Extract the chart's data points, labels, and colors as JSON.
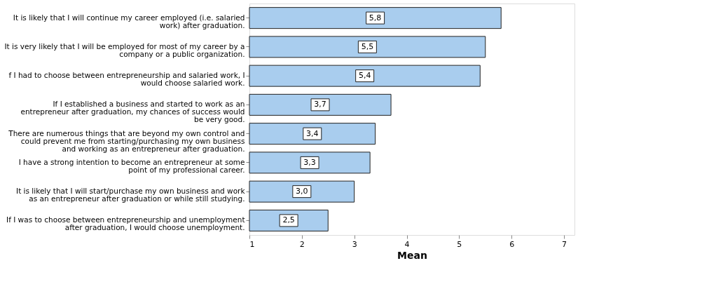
{
  "chart_data": {
    "type": "bar",
    "orientation": "horizontal",
    "xlabel": "Mean",
    "categories": [
      "It is likely that I will continue my career employed (i.e. salaried\nwork) after graduation.",
      "It is very likely that I will be employed for most of my career by a\ncompany or a public organization.",
      "f I had to choose between entrepreneurship and salaried work, I\nwould choose salaried work.",
      "If I established a business and started to work as an\nentrepreneur after graduation, my chances of success would\nbe very good.",
      "There are numerous things that are beyond my own control and\ncould prevent me from starting/purchasing my own business\nand working as an entrepreneur after graduation.",
      "I have a strong intention to become an entrepreneur at some\npoint of my professional career.",
      "It is likely that I will start/purchase my own business and work\nas an entrepreneur after graduation or while still studying.",
      "If I was to choose between entrepreneurship and unemployment\nafter graduation, I would choose unemployment."
    ],
    "values": [
      5.8,
      5.5,
      5.4,
      3.7,
      3.4,
      3.3,
      3.0,
      2.5
    ],
    "value_labels": [
      "5,8",
      "5,5",
      "5,4",
      "3,7",
      "3,4",
      "3,3",
      "3,0",
      "2,5"
    ],
    "color": "#a9cdee",
    "xlim": [
      1,
      7.2
    ],
    "xticks": [
      1,
      2,
      3,
      4,
      5,
      6,
      7
    ],
    "grid": false
  }
}
